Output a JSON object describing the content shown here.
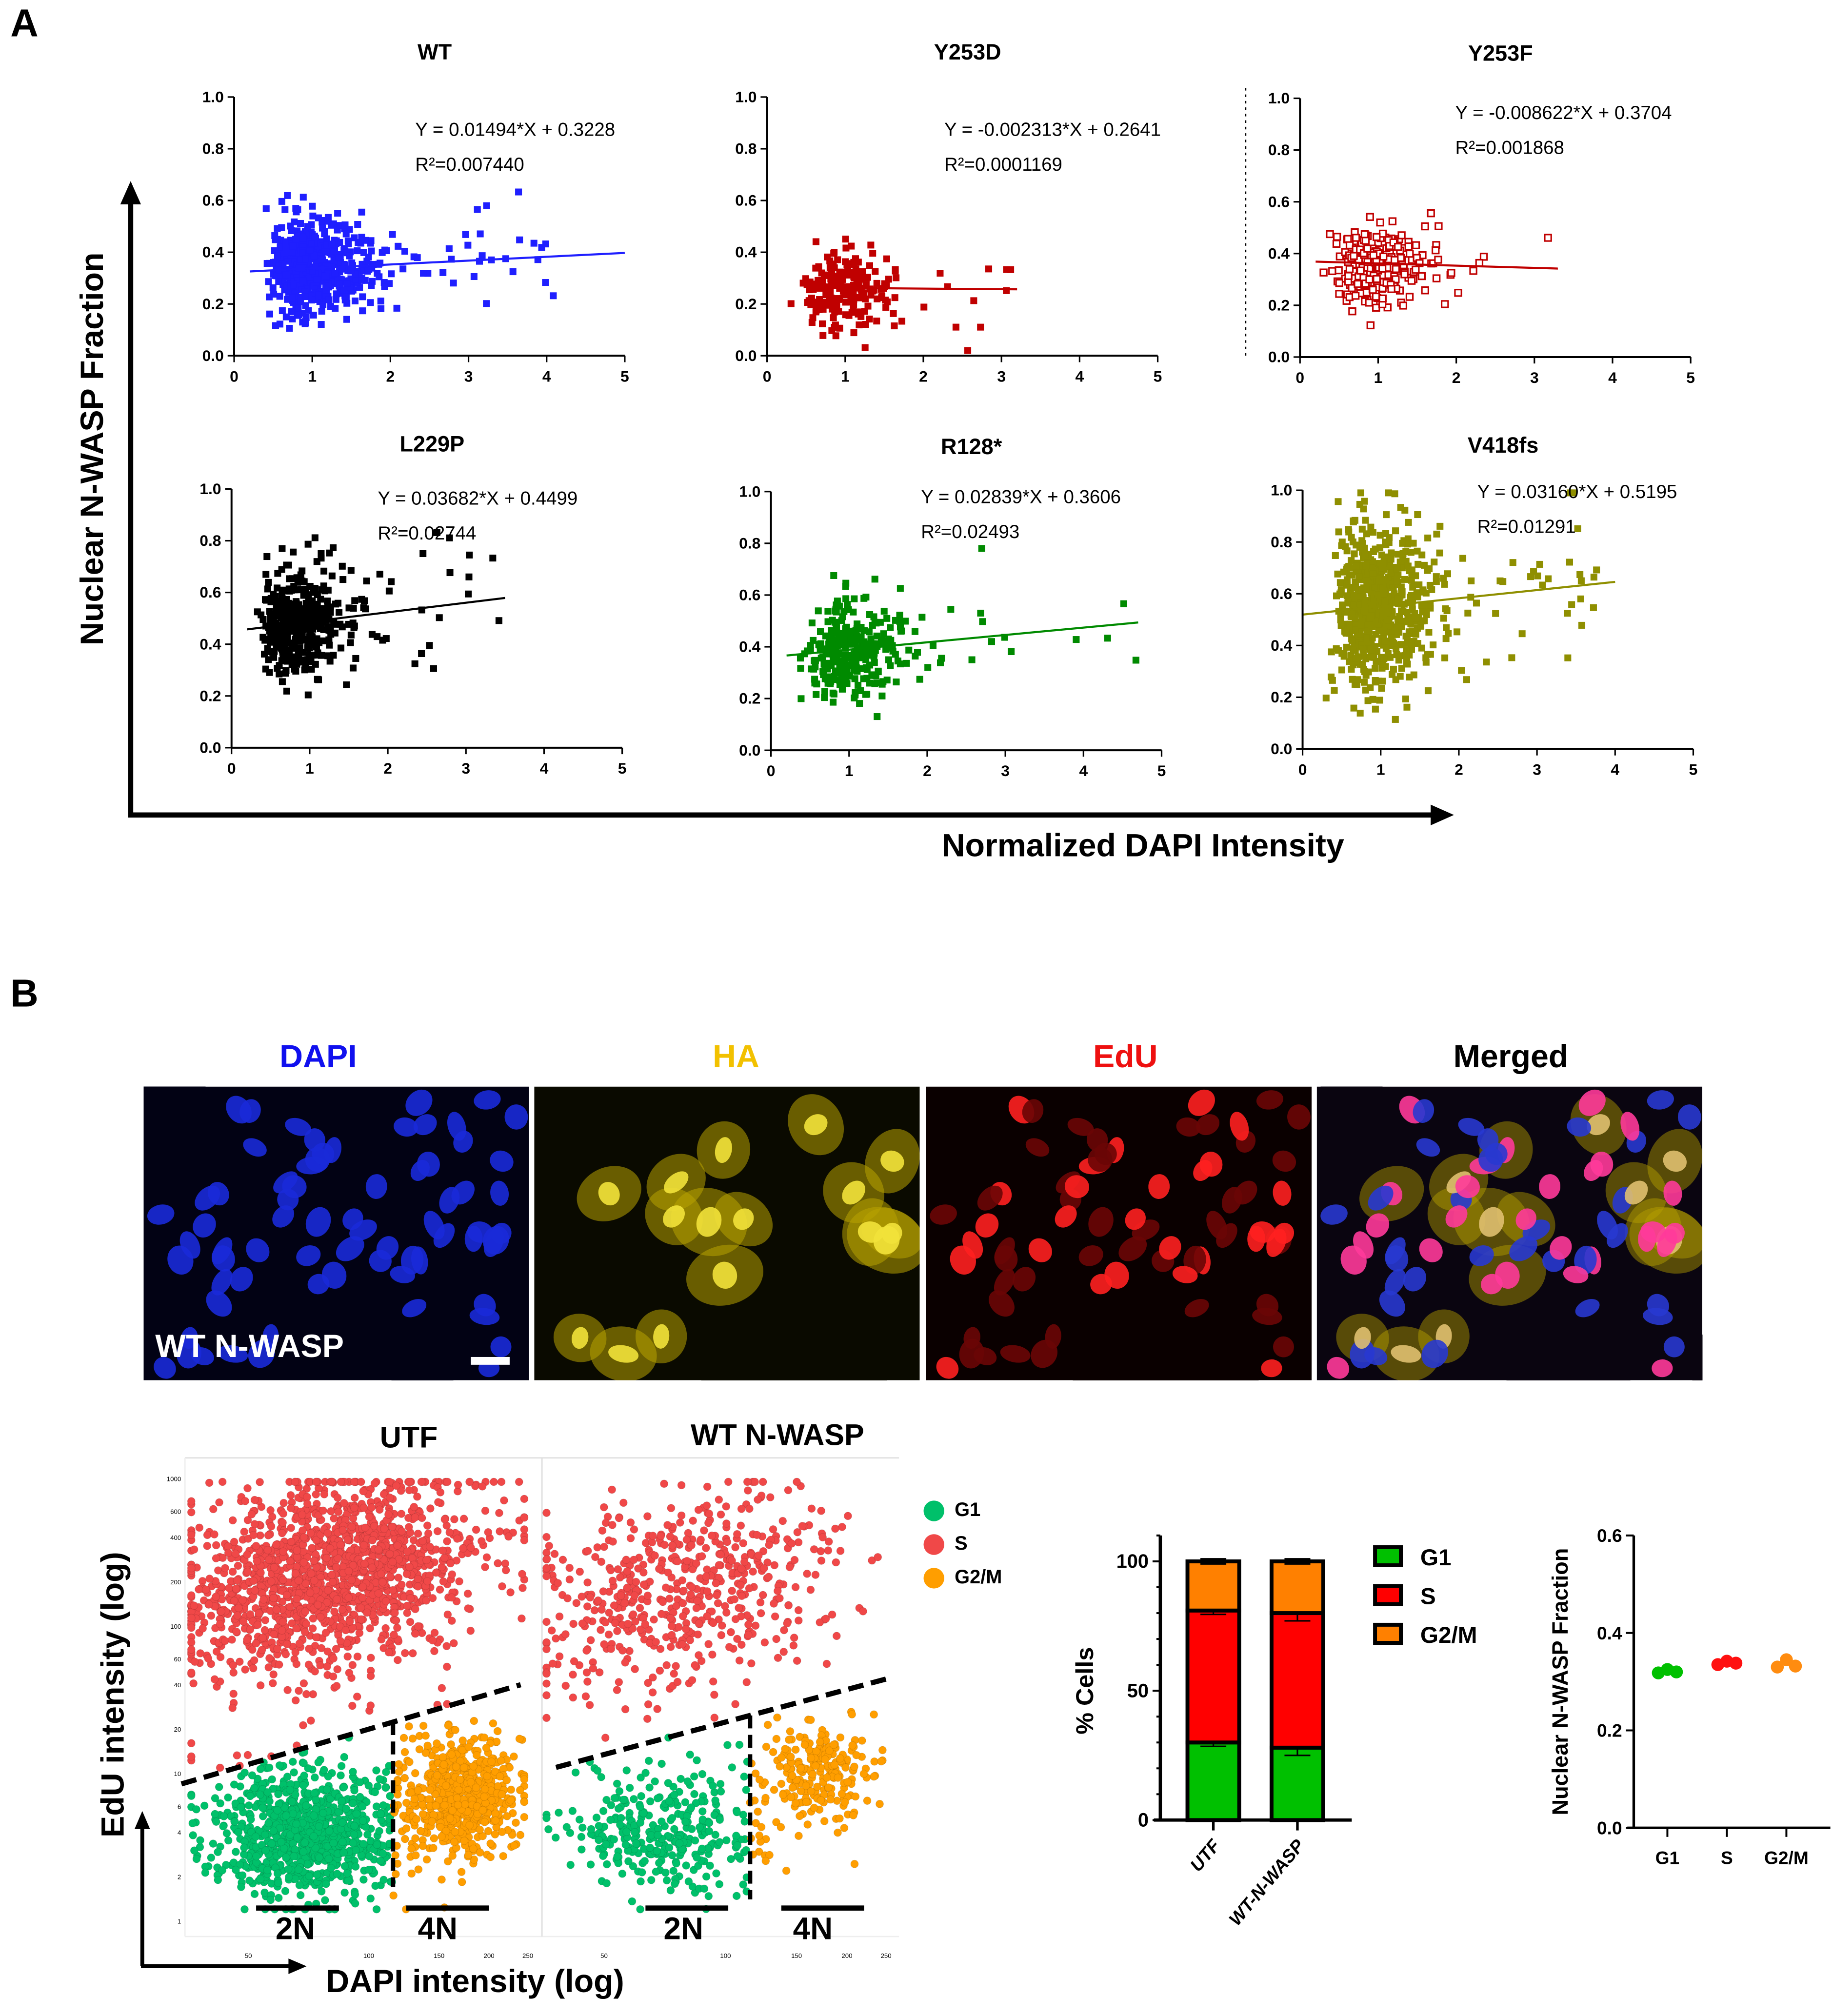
{
  "panel_a": {
    "letter": "A",
    "y_label": "Nuclear N-WASP Fraction",
    "x_label": "Normalized DAPI Intensity"
  },
  "panel_b": {
    "letter": "B",
    "image_titles": [
      "DAPI",
      "HA",
      "EdU",
      "Merged"
    ],
    "image_title_colors": [
      "#1010ee",
      "#f2c100",
      "#ee1010",
      "#000000"
    ],
    "image_overlay_label": "WT N-WASP",
    "flow_titles": [
      "UTF",
      "WT N-WASP"
    ],
    "flow_y_label": "EdU intensity (log)",
    "flow_x_label": "DAPI intensity (log)",
    "ploidy_labels": [
      "2N",
      "4N"
    ],
    "flow_legend": [
      "G1",
      "S",
      "G2/M"
    ]
  },
  "chart_data": [
    {
      "type": "scatter",
      "title": "WT",
      "xlim": [
        0,
        5
      ],
      "ylim": [
        0,
        1
      ],
      "xticks": [
        "0",
        "1",
        "2",
        "3",
        "4",
        "5"
      ],
      "yticks": [
        "0.0",
        "0.2",
        "0.4",
        "0.6",
        "0.8",
        "1.0"
      ],
      "color": "#1f1fff",
      "marker": "filled-square",
      "equation": "Y = 0.01494*X + 0.3228",
      "r2": "R²=0.007440",
      "slope": 0.01494,
      "intercept": 0.3228,
      "fit_x": [
        0.2,
        5
      ],
      "approx_points": {
        "n": 600,
        "x_center": 1.0,
        "y_sd": 0.09,
        "x_max": 4.1
      }
    },
    {
      "type": "scatter",
      "title": "Y253D",
      "xlim": [
        0,
        5
      ],
      "ylim": [
        0,
        1
      ],
      "xticks": [
        "0",
        "1",
        "2",
        "3",
        "4",
        "5"
      ],
      "yticks": [
        "0.0",
        "0.2",
        "0.4",
        "0.6",
        "0.8",
        "1.0"
      ],
      "color": "#c00000",
      "marker": "filled-square",
      "equation": "Y = -0.002313*X + 0.2641",
      "r2": "R²=0.0001169",
      "slope": -0.002313,
      "intercept": 0.2641,
      "fit_x": [
        0.5,
        3.2
      ],
      "approx_points": {
        "n": 220,
        "x_center": 0.95,
        "y_sd": 0.08,
        "x_max": 3.2
      }
    },
    {
      "type": "scatter",
      "title": "Y253F",
      "xlim": [
        0,
        5
      ],
      "ylim": [
        0,
        1
      ],
      "xticks": [
        "0",
        "1",
        "2",
        "3",
        "4",
        "5"
      ],
      "yticks": [
        "0.0",
        "0.2",
        "0.4",
        "0.6",
        "0.8",
        "1.0"
      ],
      "color": "#c00000",
      "marker": "open-square",
      "equation": "Y = -0.008622*X + 0.3704",
      "r2": "R²=0.001868",
      "slope": -0.008622,
      "intercept": 0.3704,
      "fit_x": [
        0.2,
        3.3
      ],
      "approx_points": {
        "n": 220,
        "x_center": 0.95,
        "y_sd": 0.08,
        "x_max": 3.3
      }
    },
    {
      "type": "scatter",
      "title": "L229P",
      "xlim": [
        0,
        5
      ],
      "ylim": [
        0,
        1
      ],
      "xticks": [
        "0",
        "1",
        "2",
        "3",
        "4",
        "5"
      ],
      "yticks": [
        "0.0",
        "0.2",
        "0.4",
        "0.6",
        "0.8",
        "1.0"
      ],
      "color": "#000000",
      "marker": "filled-square",
      "equation": "Y = 0.03682*X + 0.4499",
      "r2": "R²=0.02744",
      "slope": 0.03682,
      "intercept": 0.4499,
      "fit_x": [
        0.2,
        3.5
      ],
      "approx_points": {
        "n": 420,
        "x_center": 0.85,
        "y_sd": 0.11,
        "x_max": 3.5
      }
    },
    {
      "type": "scatter",
      "title": "R128*",
      "xlim": [
        0,
        5
      ],
      "ylim": [
        0,
        1
      ],
      "xticks": [
        "0",
        "1",
        "2",
        "3",
        "4",
        "5"
      ],
      "yticks": [
        "0.0",
        "0.2",
        "0.4",
        "0.6",
        "0.8",
        "1.0"
      ],
      "color": "#008a00",
      "marker": "filled-square",
      "equation": "Y = 0.02839*X + 0.3606",
      "r2": "R²=0.02493",
      "slope": 0.02839,
      "intercept": 0.3606,
      "fit_x": [
        0.2,
        4.7
      ],
      "approx_points": {
        "n": 320,
        "x_center": 1.0,
        "y_sd": 0.09,
        "x_max": 4.7
      }
    },
    {
      "type": "scatter",
      "title": "V418fs",
      "xlim": [
        0,
        5
      ],
      "ylim": [
        0,
        1
      ],
      "xticks": [
        "0",
        "1",
        "2",
        "3",
        "4",
        "5"
      ],
      "yticks": [
        "0.0",
        "0.2",
        "0.4",
        "0.6",
        "0.8",
        "1.0"
      ],
      "color": "#8f8f00",
      "marker": "filled-square",
      "equation": "Y = 0.03160*X + 0.5195",
      "r2": "R²=0.01291",
      "slope": 0.0316,
      "intercept": 0.5195,
      "fit_x": [
        0,
        4
      ],
      "approx_points": {
        "n": 650,
        "x_center": 0.95,
        "y_sd": 0.16,
        "x_max": 4.0
      }
    },
    {
      "type": "scatter",
      "title": "UTF",
      "xscale": "log",
      "yscale": "log",
      "xticks": [
        "50",
        "100",
        "150",
        "200",
        "250"
      ],
      "yticks": [
        "1",
        "2",
        "4",
        "6",
        "10",
        "20",
        "40",
        "60",
        "100",
        "200",
        "400",
        "600",
        "1000"
      ],
      "classes": {
        "G1": "#00c06a",
        "S": "#f04848",
        "G2/M": "#ff9e00"
      },
      "gate_line": [
        [
          34,
          8.5
        ],
        [
          240,
          40
        ]
      ],
      "dna_split": 115,
      "approx_points": {
        "n": 3000
      }
    },
    {
      "type": "scatter",
      "title": "WT N-WASP",
      "xscale": "log",
      "yscale": "log",
      "xticks": [
        "50",
        "100",
        "150",
        "200",
        "250"
      ],
      "classes": {
        "G1": "#00c06a",
        "S": "#f04848",
        "G2/M": "#ff9e00"
      },
      "gate_line": [
        [
          38,
          11
        ],
        [
          260,
          45
        ]
      ],
      "dna_split": 115,
      "approx_points": {
        "n": 1100
      }
    },
    {
      "type": "bar",
      "stacked": true,
      "categories": [
        "UTF",
        "WT-N-WASP"
      ],
      "ylabel": "% Cells",
      "ylim": [
        0,
        110
      ],
      "yticks": [
        "0",
        "50",
        "100"
      ],
      "series": [
        {
          "name": "G1",
          "values": [
            30,
            28
          ],
          "err": [
            1.5,
            3
          ],
          "color": "#00c000"
        },
        {
          "name": "S",
          "values": [
            51,
            52
          ],
          "err": [
            1.5,
            3
          ],
          "color": "#ff0000"
        },
        {
          "name": "G2/M",
          "values": [
            19,
            20
          ],
          "err": [
            1,
            1
          ],
          "color": "#ff8000"
        }
      ]
    },
    {
      "type": "scatter",
      "categories": [
        "G1",
        "S",
        "G2/M"
      ],
      "ylabel": "Nuclear N-WASP Fraction",
      "ylim": [
        0,
        0.6
      ],
      "yticks": [
        "0.0",
        "0.2",
        "0.4",
        "0.6"
      ],
      "series": [
        {
          "name": "G1",
          "values": [
            0.318,
            0.325,
            0.32
          ],
          "color": "#00c000"
        },
        {
          "name": "S",
          "values": [
            0.335,
            0.342,
            0.338
          ],
          "color": "#ff1010"
        },
        {
          "name": "G2/M",
          "values": [
            0.33,
            0.345,
            0.332
          ],
          "color": "#ff8c10"
        }
      ]
    }
  ]
}
